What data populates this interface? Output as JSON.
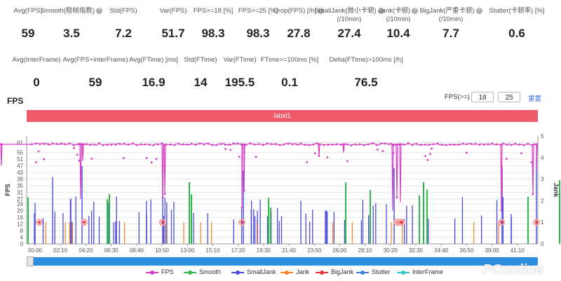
{
  "stats_row1": [
    {
      "label": "Avg(FPS)",
      "value": "59",
      "help": false
    },
    {
      "label": "Smooth(稳帧指数)",
      "value": "3.5",
      "help": true
    },
    {
      "label": "Std(FPS)",
      "value": "7.2",
      "help": false
    },
    {
      "label": "Var(FPS)",
      "value": "51.7",
      "help": false
    },
    {
      "label": "FPS>=18 [%]",
      "value": "98.3",
      "help": false
    },
    {
      "label": "FPS>=25 [%]",
      "value": "98.3",
      "help": false
    },
    {
      "label": "Drop(FPS) [/h]",
      "value": "27.8",
      "help": true
    },
    {
      "label": "SmallJank(微小卡顿)",
      "label2": "(/10min)",
      "value": "27.4",
      "help": true
    },
    {
      "label": "Jank(卡顿)",
      "label2": "(/10min)",
      "value": "10.4",
      "help": true
    },
    {
      "label": "BigJank(严重卡顿)",
      "label2": "(/10min)",
      "value": "7.7",
      "help": true
    },
    {
      "label": "Stutter(卡顿率) [%]",
      "value": "0.6",
      "help": false
    }
  ],
  "stats_row2": [
    {
      "label": "Avg(InterFrame)",
      "value": "0"
    },
    {
      "label": "Avg(FPS+InterFrame)",
      "value": "59"
    },
    {
      "label": "Avg(FTime) [ms]",
      "value": "16.9"
    },
    {
      "label": "Std(FTime)",
      "value": "14"
    },
    {
      "label": "Var(FTime)",
      "value": "195.5"
    },
    {
      "label": "FTime>=100ms [%]",
      "value": "0.1"
    },
    {
      "label": "Delta(FTime)>100ms [/h]",
      "value": "76.5"
    }
  ],
  "fps_panel": {
    "title": "FPS",
    "threshold_label": "FPS(>=)",
    "threshold_1": "18",
    "threshold_2": "25",
    "reset_label": "重置",
    "label_bar": "label1"
  },
  "colors": {
    "fps": "#d63cc6",
    "smooth": "#2fb84c",
    "smalljank": "#4a4ae0",
    "jank": "#f5821f",
    "bigjank": "#e8343a",
    "stutter": "#3c7fe0",
    "interframe": "#2cc7c7",
    "label_bar": "#f15c6d"
  },
  "legend": [
    {
      "name": "FPS",
      "color": "#d63cc6"
    },
    {
      "name": "Smooth",
      "color": "#2fb84c"
    },
    {
      "name": "SmallJank",
      "color": "#4a4ae0"
    },
    {
      "name": "Jank",
      "color": "#f5821f"
    },
    {
      "name": "BigJank",
      "color": "#e8343a"
    },
    {
      "name": "Stutter",
      "color": "#3c7fe0"
    },
    {
      "name": "InterFrame",
      "color": "#2cc7c7"
    }
  ],
  "watermark": "PConline",
  "chart_data": {
    "type": "line",
    "ylabel": "FPS",
    "y2label": "Jank",
    "y_ticks": [
      0,
      4,
      8,
      12,
      16,
      20,
      24,
      27,
      31,
      35,
      39,
      43,
      47,
      51,
      55,
      61
    ],
    "y2_ticks": [
      0,
      1,
      2,
      3,
      4,
      5
    ],
    "ylim": [
      0,
      65
    ],
    "y2lim": [
      0,
      5
    ],
    "x_ticks": [
      "00:00",
      "02:10",
      "04:20",
      "06:30",
      "08:40",
      "10:50",
      "13:00",
      "15:10",
      "17:20",
      "19:30",
      "21:40",
      "23:50",
      "26:00",
      "28:10",
      "30:20",
      "32:30",
      "34:40",
      "36:50",
      "39:00",
      "41:10"
    ],
    "fps_baseline": 60,
    "fps_dips": [
      [
        2,
        47
      ],
      [
        115,
        27
      ],
      [
        118,
        50
      ],
      [
        232,
        28
      ],
      [
        235,
        30
      ],
      [
        345,
        22
      ],
      [
        348,
        32
      ],
      [
        455,
        53
      ],
      [
        490,
        55
      ],
      [
        560,
        20
      ],
      [
        566,
        28
      ],
      [
        571,
        25
      ],
      [
        715,
        20
      ],
      [
        760,
        30
      ],
      [
        765,
        45
      ]
    ],
    "bigjank_markers": [
      [
        18,
        1
      ],
      [
        82,
        1
      ],
      [
        194,
        1
      ],
      [
        307,
        1
      ],
      [
        528,
        1
      ],
      [
        532,
        1
      ],
      [
        535,
        1
      ],
      [
        677,
        1
      ],
      [
        727,
        1
      ]
    ]
  }
}
